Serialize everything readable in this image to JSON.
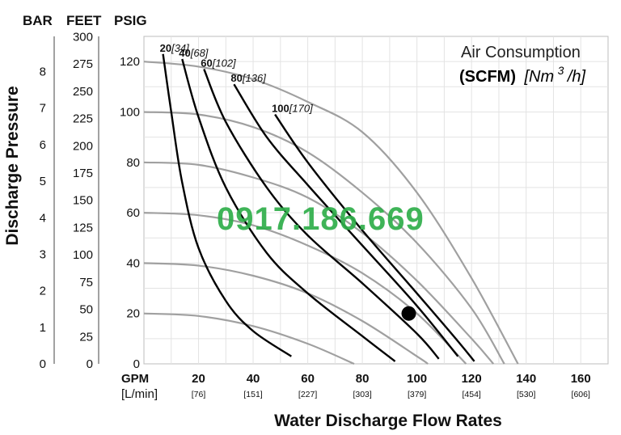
{
  "chart_data": {
    "type": "line",
    "xlabel": "Water Discharge Flow Rates",
    "ylabel": "Discharge Pressure",
    "xunit": "GPM",
    "xunit_alt": "[L/min]",
    "xlim": [
      0,
      170
    ],
    "ylim_psig": [
      0,
      130
    ],
    "y_axis_units": [
      "BAR",
      "FEET",
      "PSIG"
    ],
    "x_ticks": [
      {
        "gpm": "20",
        "lpm": "[76]"
      },
      {
        "gpm": "40",
        "lpm": "[151]"
      },
      {
        "gpm": "60",
        "lpm": "[227]"
      },
      {
        "gpm": "80",
        "lpm": "[303]"
      },
      {
        "gpm": "100",
        "lpm": "[379]"
      },
      {
        "gpm": "120",
        "lpm": "[454]"
      },
      {
        "gpm": "140",
        "lpm": "[530]"
      },
      {
        "gpm": "160",
        "lpm": "[606]"
      }
    ],
    "y_ticks_psig": [
      "0",
      "20",
      "40",
      "60",
      "80",
      "100",
      "120"
    ],
    "y_ticks_feet": [
      "0",
      "25",
      "50",
      "75",
      "100",
      "125",
      "150",
      "175",
      "200",
      "225",
      "250",
      "275",
      "300"
    ],
    "y_ticks_bar": [
      "0",
      "1",
      "2",
      "3",
      "4",
      "5",
      "6",
      "7",
      "8"
    ],
    "legend": {
      "title": "Air Consumption",
      "subtitle_bold": "(SCFM)",
      "subtitle_italic": "[Nm",
      "subtitle_sup": "3",
      "subtitle_end": "/h]"
    },
    "watermark": "0917.186.669",
    "operating_curves": [
      {
        "label": "120 PSIG",
        "points": [
          [
            0,
            120
          ],
          [
            20,
            118
          ],
          [
            40,
            113
          ],
          [
            60,
            104
          ],
          [
            80,
            92
          ],
          [
            100,
            68
          ],
          [
            120,
            34
          ],
          [
            137,
            0
          ]
        ]
      },
      {
        "label": "100 PSIG",
        "points": [
          [
            0,
            100
          ],
          [
            20,
            99
          ],
          [
            40,
            94
          ],
          [
            60,
            84
          ],
          [
            80,
            68
          ],
          [
            100,
            48
          ],
          [
            120,
            22
          ],
          [
            132,
            0
          ]
        ]
      },
      {
        "label": "80 PSIG",
        "points": [
          [
            0,
            80
          ],
          [
            20,
            79
          ],
          [
            40,
            74
          ],
          [
            60,
            66
          ],
          [
            80,
            52
          ],
          [
            100,
            33
          ],
          [
            120,
            10
          ],
          [
            128,
            0
          ]
        ]
      },
      {
        "label": "60 PSIG",
        "points": [
          [
            0,
            60
          ],
          [
            20,
            59
          ],
          [
            40,
            55
          ],
          [
            60,
            47
          ],
          [
            80,
            36
          ],
          [
            100,
            20
          ],
          [
            118,
            0
          ]
        ]
      },
      {
        "label": "40 PSIG",
        "points": [
          [
            0,
            40
          ],
          [
            20,
            39
          ],
          [
            40,
            35
          ],
          [
            60,
            28
          ],
          [
            80,
            17
          ],
          [
            100,
            3
          ],
          [
            104,
            0
          ]
        ]
      },
      {
        "label": "20 PSIG",
        "points": [
          [
            0,
            20
          ],
          [
            20,
            19
          ],
          [
            40,
            15
          ],
          [
            60,
            8
          ],
          [
            77,
            0
          ]
        ]
      }
    ],
    "air_consumption_curves": [
      {
        "scfm": "20",
        "nm3h": "[34]",
        "points": [
          [
            7,
            123
          ],
          [
            10,
            100
          ],
          [
            14,
            72
          ],
          [
            20,
            46
          ],
          [
            30,
            25
          ],
          [
            40,
            13
          ],
          [
            54,
            3
          ]
        ]
      },
      {
        "scfm": "40",
        "nm3h": "[68]",
        "points": [
          [
            14,
            121
          ],
          [
            20,
            98
          ],
          [
            30,
            70
          ],
          [
            45,
            44
          ],
          [
            60,
            28
          ],
          [
            80,
            11
          ],
          [
            92,
            1
          ]
        ]
      },
      {
        "scfm": "60",
        "nm3h": "[102]",
        "points": [
          [
            22,
            117
          ],
          [
            30,
            96
          ],
          [
            45,
            70
          ],
          [
            60,
            51
          ],
          [
            80,
            32
          ],
          [
            100,
            12
          ],
          [
            108,
            2
          ]
        ]
      },
      {
        "scfm": "80",
        "nm3h": "[136]",
        "points": [
          [
            33,
            111
          ],
          [
            45,
            90
          ],
          [
            60,
            71
          ],
          [
            80,
            47
          ],
          [
            100,
            23
          ],
          [
            115,
            3
          ]
        ]
      },
      {
        "scfm": "100",
        "nm3h": "[170]",
        "points": [
          [
            48,
            99
          ],
          [
            60,
            80
          ],
          [
            80,
            53
          ],
          [
            100,
            28
          ],
          [
            115,
            9
          ],
          [
            121,
            1
          ]
        ]
      }
    ],
    "operating_point": {
      "gpm": 97,
      "psig": 20
    }
  }
}
